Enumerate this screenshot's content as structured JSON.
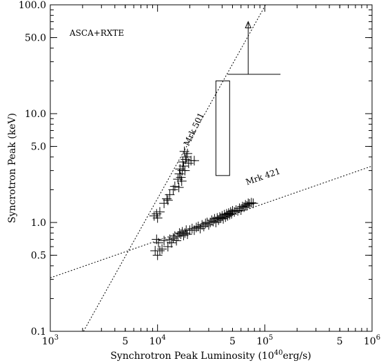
{
  "chart_data": {
    "type": "scatter",
    "title": "",
    "xlabel": "Synchrotron Peak Luminosity (10<sup>40</sup>erg/s)",
    "xlabel_parts": {
      "pre": "Synchrotron Peak Luminosity (10",
      "sup": "40",
      "post": "erg/s)"
    },
    "ylabel": "Syncrotron Peak (keV)",
    "xscale": "log",
    "yscale": "log",
    "xlim": [
      1000,
      1000000
    ],
    "ylim": [
      0.1,
      100
    ],
    "grid": false,
    "annotation": "ASCA+RXTE",
    "x_ticks": [
      {
        "value": 1000,
        "base": "10",
        "exp": "3"
      },
      {
        "value": 5000,
        "base": "5",
        "exp": ""
      },
      {
        "value": 10000,
        "base": "10",
        "exp": "4"
      },
      {
        "value": 50000,
        "base": "5",
        "exp": ""
      },
      {
        "value": 100000,
        "base": "10",
        "exp": "5"
      },
      {
        "value": 500000,
        "base": "5",
        "exp": ""
      },
      {
        "value": 1000000,
        "base": "10",
        "exp": "6"
      }
    ],
    "y_ticks": [
      {
        "value": 0.1,
        "label": "0.1"
      },
      {
        "value": 0.5,
        "label": "0.5"
      },
      {
        "value": 1,
        "label": "1.0"
      },
      {
        "value": 5,
        "label": "5.0"
      },
      {
        "value": 10,
        "label": "10.0"
      },
      {
        "value": 50,
        "label": "50.0"
      },
      {
        "value": 100,
        "label": "100.0"
      }
    ],
    "lines": [
      {
        "name": "Mrk 501",
        "points": [
          [
            2040,
            0.1
          ],
          [
            101700,
            100
          ]
        ],
        "label_at": [
          23000,
          7.0
        ],
        "label_angle": -64
      },
      {
        "name": "Mrk 421",
        "points": [
          [
            1000,
            0.31
          ],
          [
            1000000,
            3.3
          ]
        ],
        "label_at": [
          98000,
          2.5
        ],
        "label_angle": -19
      }
    ],
    "box": {
      "x": [
        35000,
        47000
      ],
      "y": [
        2.7,
        20
      ]
    },
    "lower_limit": {
      "x": [
        45000,
        140000
      ],
      "y": 23,
      "arrow_x": 70000,
      "arrow_top": 70
    },
    "series": [
      {
        "name": "Mrk 501",
        "points": [
          [
            9300,
            1.15
          ],
          [
            9800,
            1.2
          ],
          [
            10500,
            1.25
          ],
          [
            10000,
            1.1
          ],
          [
            11500,
            1.5
          ],
          [
            12200,
            1.65
          ],
          [
            13000,
            1.8
          ],
          [
            12500,
            1.6
          ],
          [
            14000,
            2.0
          ],
          [
            14500,
            2.15
          ],
          [
            15500,
            2.5
          ],
          [
            16000,
            2.8
          ],
          [
            16500,
            2.6
          ],
          [
            17000,
            3.0
          ],
          [
            15800,
            2.1
          ],
          [
            16800,
            2.4
          ],
          [
            17500,
            3.3
          ],
          [
            18000,
            3.0
          ],
          [
            18200,
            3.8
          ],
          [
            18500,
            4.0
          ],
          [
            19000,
            4.3
          ],
          [
            19500,
            3.5
          ],
          [
            20500,
            3.7
          ],
          [
            22000,
            3.7
          ],
          [
            17200,
            3.6
          ],
          [
            16200,
            3.1
          ],
          [
            17800,
            4.5
          ]
        ]
      },
      {
        "name": "Mrk 421",
        "points": [
          [
            9500,
            0.55
          ],
          [
            10000,
            0.5
          ],
          [
            10500,
            0.55
          ],
          [
            11000,
            0.57
          ],
          [
            9800,
            0.7
          ],
          [
            10200,
            0.65
          ],
          [
            11500,
            0.68
          ],
          [
            12500,
            0.6
          ],
          [
            13000,
            0.7
          ],
          [
            13500,
            0.65
          ],
          [
            14000,
            0.72
          ],
          [
            14500,
            0.75
          ],
          [
            15000,
            0.68
          ],
          [
            15500,
            0.75
          ],
          [
            16000,
            0.8
          ],
          [
            16500,
            0.78
          ],
          [
            17000,
            0.82
          ],
          [
            17500,
            0.76
          ],
          [
            18000,
            0.8
          ],
          [
            18500,
            0.85
          ],
          [
            19000,
            0.78
          ],
          [
            20000,
            0.85
          ],
          [
            21000,
            0.88
          ],
          [
            22000,
            0.85
          ],
          [
            23000,
            0.9
          ],
          [
            24000,
            0.92
          ],
          [
            25000,
            0.88
          ],
          [
            26000,
            0.95
          ],
          [
            27000,
            0.92
          ],
          [
            28000,
            0.98
          ],
          [
            29000,
            1.0
          ],
          [
            30000,
            0.95
          ],
          [
            31000,
            1.0
          ],
          [
            32000,
            1.05
          ],
          [
            33000,
            1.02
          ],
          [
            34000,
            1.08
          ],
          [
            35000,
            1.0
          ],
          [
            36000,
            1.1
          ],
          [
            37000,
            1.05
          ],
          [
            38000,
            1.12
          ],
          [
            39000,
            1.1
          ],
          [
            40000,
            1.15
          ],
          [
            41000,
            1.08
          ],
          [
            42000,
            1.18
          ],
          [
            43000,
            1.12
          ],
          [
            44000,
            1.2
          ],
          [
            45000,
            1.15
          ],
          [
            46000,
            1.22
          ],
          [
            47000,
            1.18
          ],
          [
            48000,
            1.25
          ],
          [
            49000,
            1.2
          ],
          [
            50000,
            1.28
          ],
          [
            52000,
            1.25
          ],
          [
            54000,
            1.3
          ],
          [
            56000,
            1.28
          ],
          [
            58000,
            1.35
          ],
          [
            60000,
            1.3
          ],
          [
            62000,
            1.4
          ],
          [
            64000,
            1.38
          ],
          [
            66000,
            1.45
          ],
          [
            68000,
            1.42
          ],
          [
            70000,
            1.5
          ],
          [
            72000,
            1.48
          ],
          [
            75000,
            1.52
          ],
          [
            78000,
            1.5
          ]
        ]
      }
    ]
  }
}
